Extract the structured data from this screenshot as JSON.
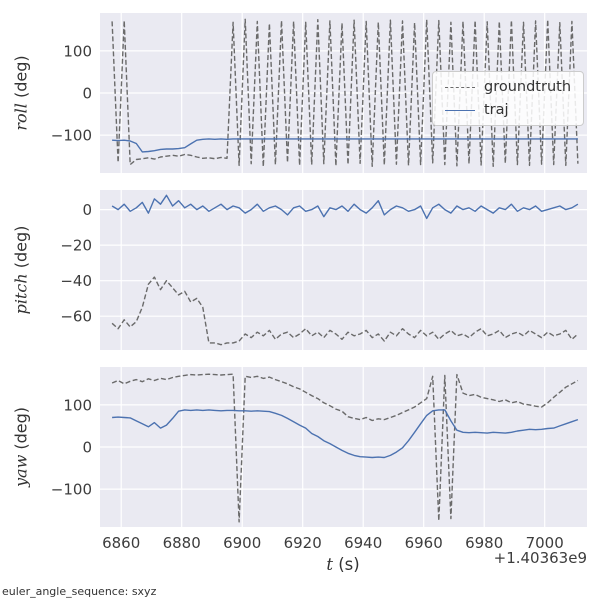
{
  "corner_note": "euler_angle_sequence: sxyz",
  "legend_labels": [
    "groundtruth",
    "traj"
  ],
  "chart_data": {
    "type": "line",
    "title": "",
    "xlabel_var": "t",
    "xlabel_unit": " (s)",
    "x_offset_label": "+1.40363e9",
    "grid": true,
    "legend_position": "center-right of roll subplot",
    "colors": {
      "groundtruth": "#6a6a6a",
      "traj": "#4c72b0",
      "axes_bg": "#eaeaf2",
      "grid": "#ffffff"
    },
    "xlim": [
      6853,
      7014
    ],
    "xticks": [
      6860,
      6880,
      6900,
      6920,
      6940,
      6960,
      6980,
      7000
    ],
    "x": [
      6857,
      6859,
      6861,
      6863,
      6865,
      6867,
      6869,
      6871,
      6873,
      6875,
      6877,
      6879,
      6881,
      6883,
      6885,
      6887,
      6889,
      6891,
      6893,
      6895,
      6897,
      6899,
      6901,
      6903,
      6905,
      6907,
      6909,
      6911,
      6913,
      6915,
      6917,
      6919,
      6921,
      6923,
      6925,
      6927,
      6929,
      6931,
      6933,
      6935,
      6937,
      6939,
      6941,
      6943,
      6945,
      6947,
      6949,
      6951,
      6953,
      6955,
      6957,
      6959,
      6961,
      6963,
      6965,
      6967,
      6969,
      6971,
      6973,
      6975,
      6977,
      6979,
      6981,
      6983,
      6985,
      6987,
      6989,
      6991,
      6993,
      6995,
      6997,
      6999,
      7001,
      7003,
      7005,
      7007,
      7009,
      7011
    ],
    "subplots": [
      {
        "ylabel_var": "roll",
        "ylabel_unit": " (deg)",
        "ylim": [
          -190,
          190
        ],
        "yticks": [
          -100,
          0,
          100
        ],
        "series": [
          {
            "name": "groundtruth",
            "style": "dashed",
            "y": [
              170,
              -165,
              172,
              -170,
              -158,
              -156,
              -154,
              -157,
              -152,
              -150,
              -148,
              -150,
              -146,
              -148,
              -152,
              -155,
              -154,
              -156,
              -153,
              -155,
              168,
              -172,
              175,
              -168,
              170,
              -175,
              165,
              -170,
              172,
              -165,
              170,
              -172,
              168,
              -170,
              174,
              -168,
              171,
              -173,
              166,
              -170,
              173,
              -167,
              170,
              -174,
              168,
              -171,
              173,
              -169,
              171,
              -172,
              167,
              -170,
              174,
              -166,
              172,
              -170,
              168,
              -173,
              170,
              -168,
              172,
              -171,
              169,
              -174,
              170,
              -167,
              173,
              -170,
              168,
              -172,
              171,
              -169,
              174,
              -170,
              167,
              -172,
              170,
              -168
            ]
          },
          {
            "name": "traj",
            "style": "solid",
            "y": [
              -112,
              -113,
              -112,
              -114,
              -120,
              -140,
              -139,
              -137,
              -134,
              -133,
              -133,
              -132,
              -130,
              -121,
              -112,
              -110,
              -109,
              -110,
              -109,
              -110,
              -109,
              -109,
              -109,
              -109,
              -109,
              -109,
              -109,
              -109,
              -109,
              -109,
              -109,
              -109,
              -109,
              -109,
              -109,
              -109,
              -109,
              -109,
              -109,
              -109,
              -109,
              -109,
              -109,
              -109,
              -109,
              -109,
              -109,
              -109,
              -109,
              -109,
              -109,
              -109,
              -109,
              -109,
              -109,
              -109,
              -109,
              -109,
              -109,
              -109,
              -109,
              -109,
              -109,
              -109,
              -109,
              -109,
              -109,
              -109,
              -109,
              -109,
              -109,
              -109,
              -109,
              -109,
              -109,
              -109,
              -109,
              -109
            ]
          }
        ]
      },
      {
        "ylabel_var": "pitch",
        "ylabel_unit": " (deg)",
        "ylim": [
          -79,
          11
        ],
        "yticks": [
          -60,
          -40,
          -20,
          0
        ],
        "series": [
          {
            "name": "groundtruth",
            "style": "dashed",
            "y": [
              -64,
              -67,
              -62,
              -66,
              -63,
              -55,
              -42,
              -38,
              -45,
              -40,
              -44,
              -48,
              -46,
              -52,
              -50,
              -55,
              -75,
              -75,
              -76,
              -75,
              -75,
              -74,
              -70,
              -72,
              -69,
              -71,
              -68,
              -73,
              -70,
              -69,
              -72,
              -70,
              -67,
              -71,
              -69,
              -72,
              -68,
              -70,
              -73,
              -69,
              -71,
              -70,
              -68,
              -72,
              -70,
              -74,
              -69,
              -71,
              -67,
              -70,
              -72,
              -68,
              -71,
              -69,
              -73,
              -70,
              -68,
              -71,
              -70,
              -72,
              -69,
              -67,
              -71,
              -70,
              -68,
              -72,
              -70,
              -69,
              -71,
              -68,
              -70,
              -72,
              -69,
              -71,
              -70,
              -68,
              -73,
              -70
            ]
          },
          {
            "name": "traj",
            "style": "solid",
            "y": [
              2,
              0,
              3,
              -1,
              1,
              4,
              -2,
              6,
              3,
              8,
              2,
              5,
              1,
              3,
              0,
              2,
              -1,
              1,
              3,
              0,
              2,
              1,
              -2,
              0,
              3,
              -1,
              1,
              2,
              0,
              -3,
              1,
              2,
              -1,
              0,
              2,
              -4,
              1,
              0,
              2,
              -1,
              3,
              0,
              -2,
              1,
              5,
              -3,
              0,
              2,
              1,
              -1,
              0,
              2,
              -5,
              1,
              3,
              0,
              -2,
              2,
              0,
              1,
              -1,
              2,
              0,
              -2,
              1,
              0,
              3,
              -1,
              1,
              0,
              2,
              -1,
              0,
              1,
              2,
              0,
              1,
              3
            ]
          }
        ]
      },
      {
        "ylabel_var": "yaw",
        "ylabel_unit": " (deg)",
        "ylim": [
          -190,
          190
        ],
        "yticks": [
          -100,
          0,
          100
        ],
        "series": [
          {
            "name": "groundtruth",
            "style": "dashed",
            "y": [
              152,
              158,
              150,
              156,
              160,
              155,
              162,
              158,
              163,
              160,
              165,
              168,
              170,
              172,
              171,
              172,
              173,
              172,
              171,
              172,
              173,
              -178,
              168,
              165,
              168,
              163,
              166,
              160,
              155,
              150,
              143,
              138,
              130,
              122,
              115,
              105,
              98,
              90,
              85,
              72,
              68,
              65,
              70,
              63,
              67,
              65,
              70,
              75,
              82,
              88,
              95,
              105,
              115,
              168,
              -175,
              170,
              -170,
              172,
              128,
              122,
              125,
              118,
              115,
              112,
              108,
              112,
              105,
              108,
              102,
              100,
              97,
              95,
              105,
              118,
              130,
              142,
              150,
              158
            ]
          },
          {
            "name": "traj",
            "style": "solid",
            "y": [
              70,
              71,
              70,
              69,
              62,
              55,
              48,
              58,
              45,
              52,
              68,
              85,
              88,
              87,
              88,
              87,
              88,
              87,
              86,
              87,
              87,
              86,
              86,
              85,
              86,
              85,
              84,
              80,
              75,
              68,
              60,
              52,
              45,
              32,
              25,
              15,
              8,
              0,
              -8,
              -15,
              -20,
              -23,
              -24,
              -25,
              -24,
              -25,
              -20,
              -12,
              -2,
              15,
              35,
              55,
              75,
              86,
              88,
              88,
              62,
              40,
              35,
              34,
              35,
              34,
              33,
              35,
              34,
              33,
              35,
              38,
              40,
              42,
              41,
              42,
              44,
              45,
              50,
              55,
              60,
              65
            ]
          }
        ]
      }
    ]
  }
}
